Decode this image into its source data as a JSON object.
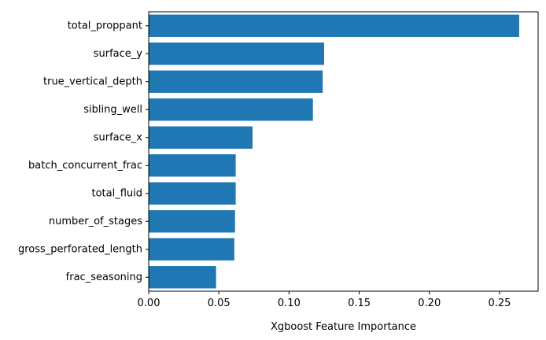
{
  "chart_data": {
    "type": "bar",
    "orientation": "horizontal",
    "categories": [
      "total_proppant",
      "surface_y",
      "true_vertical_depth",
      "sibling_well",
      "surface_x",
      "batch_concurrent_frac",
      "total_fluid",
      "number_of_stages",
      "gross_perforated_length",
      "frac_seasoning"
    ],
    "values": [
      0.264,
      0.125,
      0.124,
      0.117,
      0.074,
      0.062,
      0.062,
      0.0615,
      0.061,
      0.048
    ],
    "title": "",
    "xlabel": "Xgboost Feature Importance",
    "ylabel": "",
    "xlim": [
      0,
      0.2775
    ],
    "xticks": [
      0.0,
      0.05,
      0.1,
      0.15,
      0.2,
      0.25
    ],
    "xtick_labels": [
      "0.00",
      "0.05",
      "0.10",
      "0.15",
      "0.20",
      "0.25"
    ],
    "bar_color": "#1f77b4",
    "grid": false,
    "legend": "none"
  }
}
